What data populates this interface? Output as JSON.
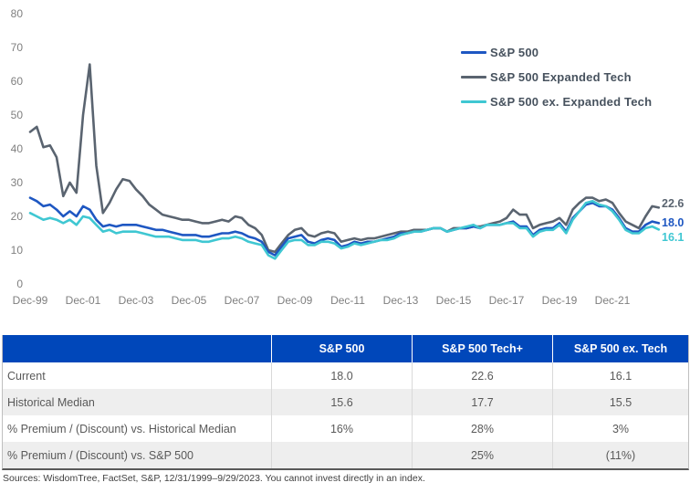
{
  "chart_data": {
    "type": "line",
    "title": "",
    "xlabel": "",
    "ylabel": "",
    "ylim": [
      0,
      80
    ],
    "grid": false,
    "legend_position": "top-right",
    "x_unit": "quarterly, Dec-1999 through Sep-2023",
    "y_ticks": [
      0,
      10,
      20,
      30,
      40,
      50,
      60,
      70,
      80
    ],
    "x_tick_labels": [
      "Dec-99",
      "Dec-01",
      "Dec-03",
      "Dec-05",
      "Dec-07",
      "Dec-09",
      "Dec-11",
      "Dec-13",
      "Dec-15",
      "Dec-17",
      "Dec-19",
      "Dec-21"
    ],
    "draw_order": [
      1,
      0,
      2
    ],
    "series": [
      {
        "name": "S&P 500",
        "color": "#1E57C2",
        "values": [
          25.5,
          24.5,
          23,
          23.5,
          22,
          20,
          21.5,
          20,
          23,
          22,
          19,
          17,
          17.5,
          17,
          17.5,
          17.5,
          17.5,
          17,
          16.5,
          16,
          16,
          15.5,
          15,
          14.5,
          14.5,
          14.5,
          14,
          14,
          14.5,
          15,
          15,
          15.5,
          15,
          14,
          13.5,
          12.5,
          9.5,
          8.5,
          11,
          13.5,
          14,
          14.5,
          12.5,
          12,
          13,
          13.5,
          13,
          11,
          11.5,
          12.5,
          12,
          12.5,
          12.5,
          13,
          13.5,
          14,
          15,
          15,
          15.5,
          15.5,
          16,
          16.5,
          16.5,
          15.5,
          16,
          16.5,
          16.5,
          17,
          16.5,
          17.5,
          17.5,
          17.5,
          18,
          18.5,
          17,
          17,
          14.5,
          16,
          16.5,
          16.5,
          18,
          15.5,
          19.5,
          21.5,
          23.5,
          24,
          23,
          23,
          22,
          19.5,
          16.5,
          15.5,
          15.5,
          17.5,
          18.5,
          18
        ]
      },
      {
        "name": "S&P 500 Expanded Tech",
        "color": "#5A6470",
        "values": [
          45,
          46.5,
          40.5,
          41,
          37.5,
          26,
          30,
          27,
          50,
          65,
          35,
          21,
          24,
          28,
          31,
          30.5,
          28,
          26,
          23.5,
          22,
          20.5,
          20,
          19.5,
          19,
          19,
          18.5,
          18,
          18,
          18.5,
          19,
          18.5,
          20,
          19.5,
          17.5,
          16.5,
          14.5,
          10,
          9.5,
          12,
          14.5,
          16,
          16.5,
          14.5,
          14,
          15,
          15.5,
          15,
          12.5,
          13,
          13.5,
          13,
          13.5,
          13.5,
          14,
          14.5,
          15,
          15.5,
          15.5,
          16,
          16,
          16,
          16.5,
          16.5,
          15.5,
          16.5,
          16.5,
          16.5,
          17,
          17,
          17.5,
          18,
          18.5,
          19.5,
          22,
          20.5,
          20.5,
          16.5,
          17.5,
          18,
          18.5,
          19.5,
          17.5,
          22,
          24,
          25.5,
          25.5,
          24.5,
          25,
          24,
          21,
          18.5,
          17.5,
          16.5,
          20,
          23,
          22.6
        ]
      },
      {
        "name": "S&P 500 ex. Expanded Tech",
        "color": "#3FC7D2",
        "values": [
          21,
          20,
          19,
          19.5,
          19,
          18,
          19,
          17.5,
          20,
          19.5,
          17.5,
          15.5,
          16,
          15,
          15.5,
          15.5,
          15.5,
          15,
          14.5,
          14,
          14,
          14,
          13.5,
          13,
          13,
          13,
          12.5,
          12.5,
          13,
          13.5,
          13.5,
          14,
          13.5,
          12.5,
          12,
          11.5,
          8.5,
          7.5,
          10,
          12.5,
          13,
          13,
          11.5,
          11.5,
          12.5,
          12.5,
          12,
          10.5,
          11,
          12,
          11.5,
          12,
          12.5,
          13,
          13,
          13.5,
          14.5,
          15,
          15.5,
          15.5,
          16,
          16.5,
          16.5,
          15.5,
          16,
          16.5,
          17,
          17.5,
          16.5,
          17.5,
          17.5,
          17.5,
          18,
          18,
          16.5,
          16.5,
          14,
          15.5,
          16,
          16,
          17.5,
          15,
          19,
          21.5,
          24,
          24.5,
          23.5,
          23,
          21.5,
          19,
          16,
          15,
          15,
          16.5,
          17,
          16.1
        ]
      }
    ],
    "end_labels": [
      {
        "text": "22.6",
        "color": "#5A6470"
      },
      {
        "text": "18.0",
        "color": "#1E57C2"
      },
      {
        "text": "16.1",
        "color": "#3FC7D2"
      }
    ]
  },
  "table": {
    "header_bg": "#0047BA",
    "headers": [
      "",
      "S&P 500",
      "S&P 500 Tech+",
      "S&P 500 ex. Tech"
    ],
    "rows": [
      {
        "label": "Current",
        "values": [
          "18.0",
          "22.6",
          "16.1"
        ]
      },
      {
        "label": "Historical Median",
        "values": [
          "15.6",
          "17.7",
          "15.5"
        ]
      },
      {
        "label": "% Premium / (Discount) vs. Historical Median",
        "values": [
          "16%",
          "28%",
          "3%"
        ]
      },
      {
        "label": "% Premium / (Discount) vs. S&P 500",
        "values": [
          "",
          "25%",
          "(11%)"
        ]
      }
    ]
  },
  "footer": {
    "source": "Sources: WisdomTree, FactSet, S&P, 12/31/1999–9/29/2023. You cannot invest directly in an index."
  }
}
